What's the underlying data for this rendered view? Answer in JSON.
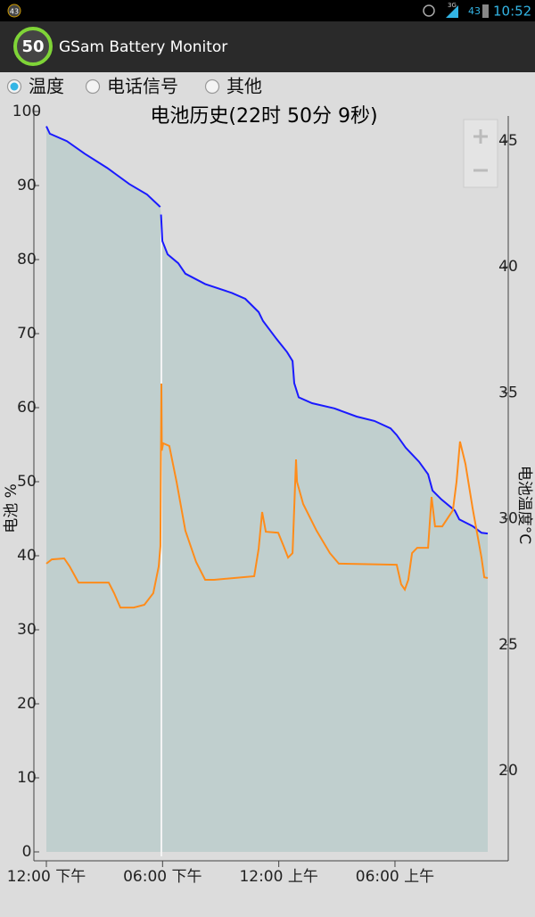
{
  "status_bar": {
    "notification": "43",
    "network": "3G",
    "battery": "43",
    "time": "10:52"
  },
  "app_bar": {
    "icon_label": "50",
    "title": "GSam Battery Monitor"
  },
  "tabs": [
    {
      "label": "温度",
      "selected": true
    },
    {
      "label": "电话信号",
      "selected": false
    },
    {
      "label": "其他",
      "selected": false
    }
  ],
  "chart_data": {
    "type": "line",
    "title": "电池历史(22时 50分 9秒)",
    "y_label": "电池 %",
    "y2_label": "电池温度°C",
    "xlim": [
      0,
      22.79
    ],
    "xticks": [
      {
        "value": 0,
        "label": "12:00 下午"
      },
      {
        "value": 6,
        "label": "06:00 下午"
      },
      {
        "value": 12,
        "label": "12:00 上午"
      },
      {
        "value": 18,
        "label": "06:00 上午"
      }
    ],
    "ylim": [
      0,
      100
    ],
    "yticks": [
      0,
      10,
      20,
      30,
      40,
      50,
      60,
      70,
      80,
      90,
      100
    ],
    "y2lim": [
      16.78,
      46.17
    ],
    "y2ticks": [
      20,
      25,
      30,
      35,
      40,
      45
    ],
    "area_color": "#c0cfce",
    "series": [
      {
        "color": "#1a1aff",
        "x": [
          0,
          0.18,
          1.06,
          1.98,
          3.13,
          4.28,
          5.2,
          5.8,
          5.88,
          5.9,
          5.92,
          5.99,
          6.26,
          6.81,
          7.18,
          8.2,
          9.58,
          10.27,
          10.96,
          11.19,
          11.88,
          12.43,
          12.71,
          12.8,
          13.03,
          13.72,
          14.87,
          16.02,
          16.94,
          17.77,
          18.09,
          18.55,
          19.24,
          19.71,
          19.94,
          20.4,
          21.09,
          21.32,
          22.01,
          22.47,
          22.79
        ],
        "values": [
          98.0,
          97.0,
          96.0,
          94.3,
          92.4,
          90.2,
          88.8,
          87.3,
          87.1,
          null,
          86.1,
          82.5,
          80.7,
          79.5,
          78.1,
          76.7,
          75.5,
          74.7,
          72.9,
          71.7,
          69.3,
          67.5,
          66.3,
          63.3,
          61.4,
          60.6,
          59.9,
          58.8,
          58.2,
          57.2,
          56.3,
          54.6,
          52.7,
          51.0,
          48.8,
          47.6,
          46.1,
          44.9,
          44.0,
          43.1,
          43.0
        ]
      },
      {
        "color": "#ff8c1a",
        "axis": "y2",
        "x": [
          0,
          0.28,
          0.92,
          1.2,
          1.66,
          2.21,
          3.22,
          3.5,
          3.82,
          4.51,
          5.06,
          5.52,
          5.8,
          5.89,
          5.94,
          5.96,
          6.03,
          6.35,
          6.72,
          7.18,
          7.73,
          8.2,
          8.66,
          10.73,
          10.96,
          11.14,
          11.33,
          11.97,
          12.25,
          12.48,
          12.71,
          12.89,
          12.94,
          13.26,
          13.95,
          14.64,
          15.1,
          18.09,
          18.32,
          18.51,
          18.69,
          18.88,
          19.15,
          19.71,
          19.89,
          20.07,
          20.44,
          20.99,
          21.18,
          21.36,
          21.64,
          22.01,
          22.47,
          22.61,
          22.79
        ],
        "values": [
          28.22,
          28.39,
          28.43,
          28.11,
          27.47,
          27.47,
          27.47,
          27.05,
          26.48,
          26.48,
          26.59,
          27.05,
          28.11,
          28.92,
          35.37,
          32.71,
          33.0,
          32.89,
          31.47,
          29.53,
          28.29,
          27.58,
          27.58,
          27.72,
          28.82,
          30.27,
          29.49,
          29.45,
          28.92,
          28.46,
          28.64,
          32.36,
          31.47,
          30.59,
          29.53,
          28.64,
          28.22,
          28.18,
          27.4,
          27.19,
          27.58,
          28.64,
          28.85,
          28.85,
          30.87,
          29.7,
          29.7,
          30.34,
          31.47,
          33.07,
          32.18,
          30.41,
          28.46,
          27.68,
          27.65
        ]
      }
    ]
  }
}
